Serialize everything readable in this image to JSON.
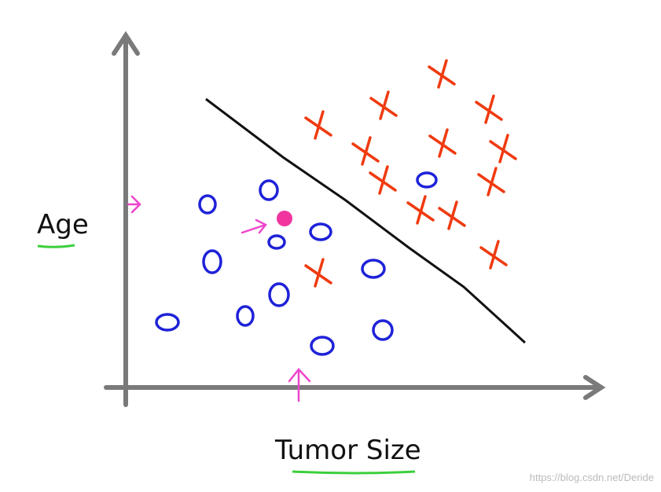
{
  "axes": {
    "y_label": "Age",
    "x_label": "Tumor Size"
  },
  "watermark": "https://blog.csdn.net/Deride"
}
